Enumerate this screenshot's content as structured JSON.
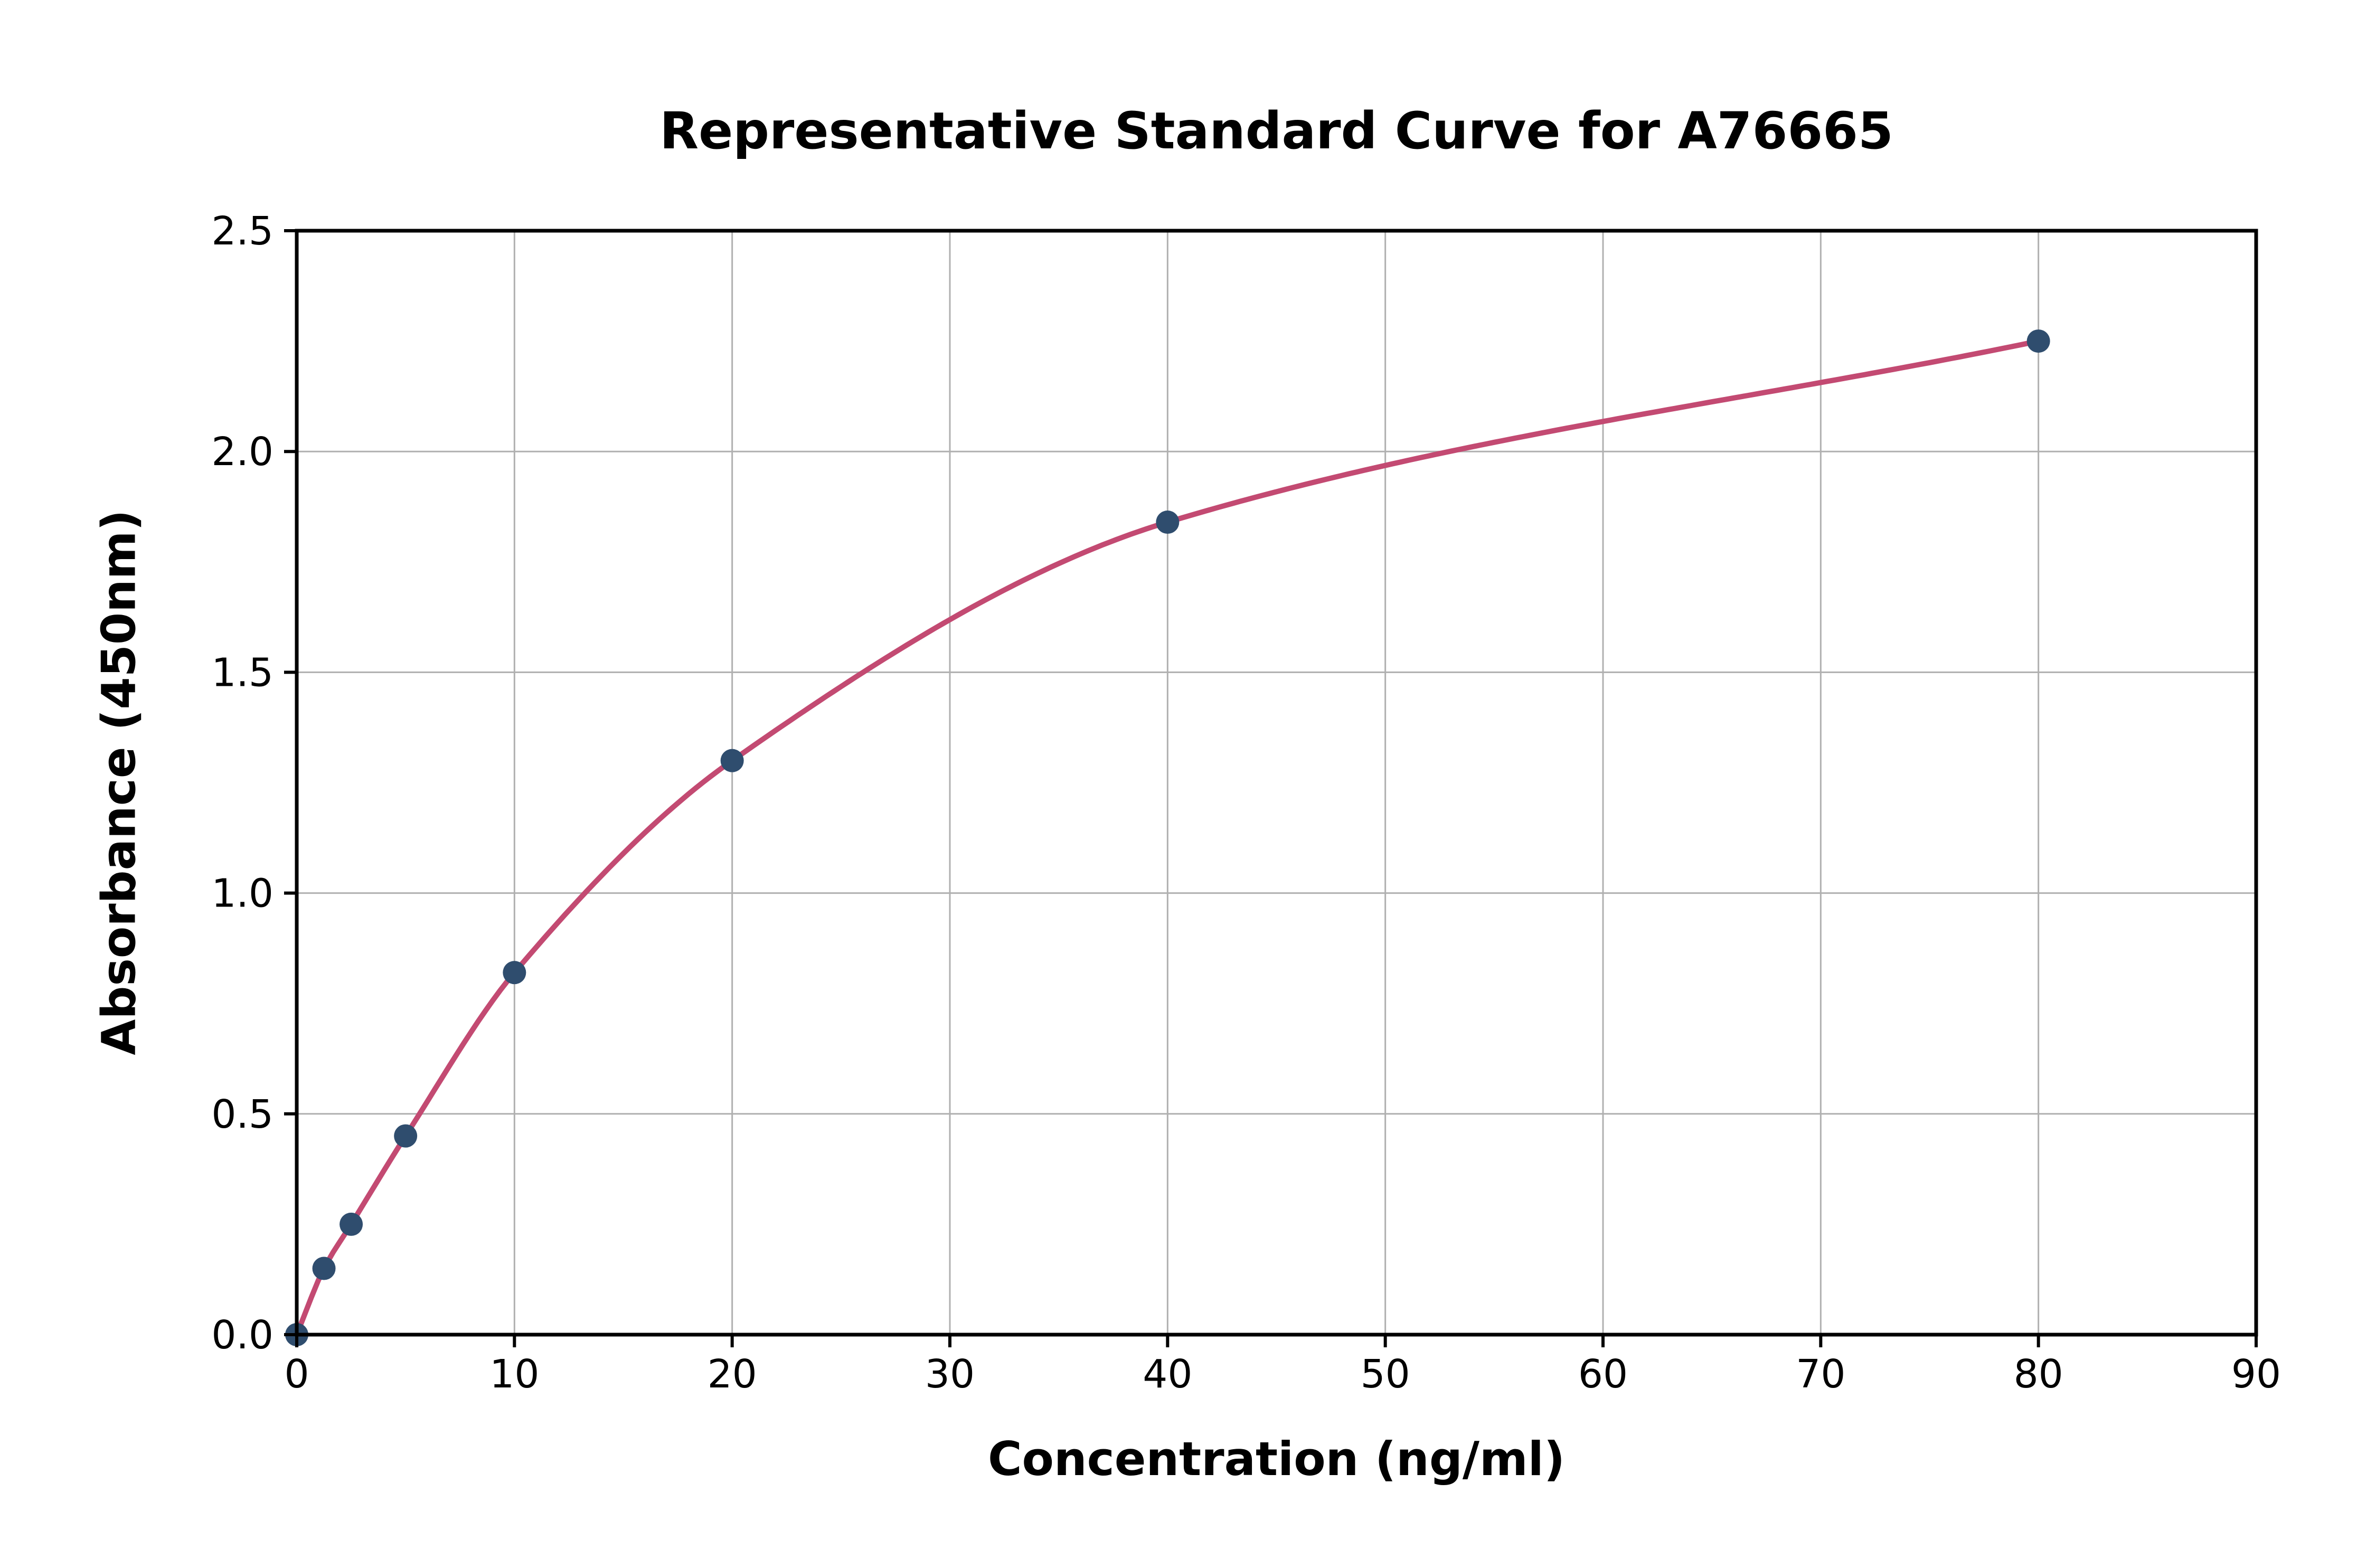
{
  "chart_data": {
    "type": "scatter",
    "title": "Representative Standard Curve for A76665",
    "xlabel": "Concentration (ng/ml)",
    "ylabel": "Absorbance (450nm)",
    "xlim": [
      0,
      90
    ],
    "ylim": [
      0,
      2.5
    ],
    "grid": true,
    "legend": "none",
    "x_ticks": [
      0,
      10,
      20,
      30,
      40,
      50,
      60,
      70,
      80,
      90
    ],
    "x_tick_labels": [
      "0",
      "10",
      "20",
      "30",
      "40",
      "50",
      "60",
      "70",
      "80",
      "90"
    ],
    "y_ticks": [
      0,
      0.5,
      1.0,
      1.5,
      2.0,
      2.5
    ],
    "y_tick_labels": [
      "0.0",
      "0.5",
      "1.0",
      "1.5",
      "2.0",
      "2.5"
    ],
    "series": [
      {
        "name": "standard-points",
        "type": "scatter",
        "x": [
          0,
          1.25,
          2.5,
          5,
          10,
          20,
          40,
          80
        ],
        "y": [
          0,
          0.15,
          0.25,
          0.45,
          0.82,
          1.3,
          1.84,
          2.25
        ]
      },
      {
        "name": "fit-curve",
        "type": "line",
        "description": "smooth saturation-fit curve through the standard points from x=0 to x=80"
      }
    ],
    "colors": {
      "curve": "#c34a72",
      "points": "#2f4d6e",
      "grid": "#b0b0b0",
      "spine": "#000000",
      "text": "#000000",
      "background": "#ffffff"
    }
  }
}
